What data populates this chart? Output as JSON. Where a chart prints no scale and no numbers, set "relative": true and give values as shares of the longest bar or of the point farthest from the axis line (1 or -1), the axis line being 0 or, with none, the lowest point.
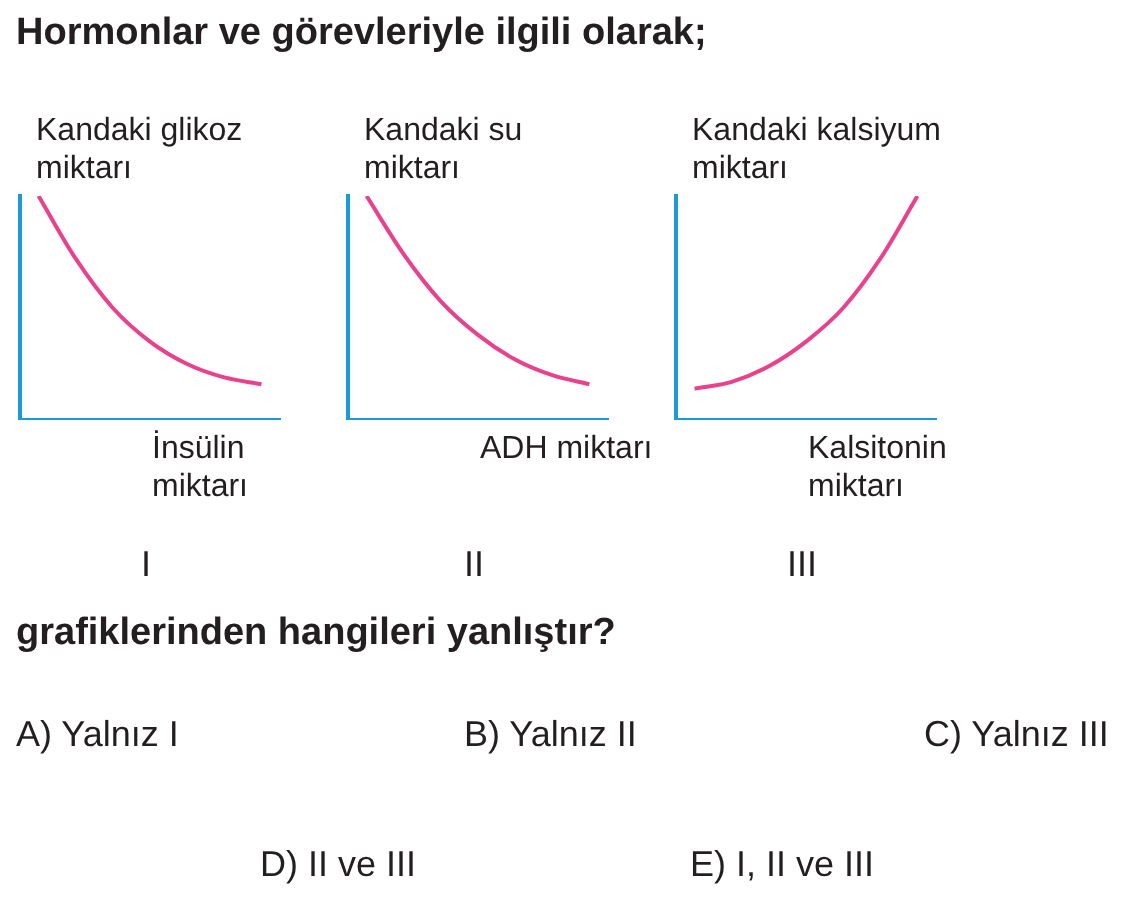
{
  "chart_data": [
    {
      "type": "other",
      "title": "Hormonlar ve görevleriyle ilgili olarak;"
    },
    {
      "type": "line",
      "relative": true,
      "ylabel": "Kandaki glikoz miktarı",
      "xlabel": "İnsülin miktarı",
      "annotations": [
        "I"
      ],
      "categories": [
        null,
        null,
        null,
        null,
        null,
        null,
        null
      ],
      "series": [
        {
          "color": "#e8428c",
          "values": [
            1,
            0.72,
            0.5,
            0.35,
            0.25,
            0.19,
            0.16
          ]
        }
      ],
      "marker": "none",
      "legend": false,
      "grid": false
    },
    {
      "type": "line",
      "relative": true,
      "ylabel": "Kandaki su miktarı",
      "xlabel": "ADH miktarı",
      "annotations": [
        "II"
      ],
      "categories": [
        null,
        null,
        null,
        null,
        null,
        null,
        null
      ],
      "series": [
        {
          "color": "#e8428c",
          "values": [
            1,
            0.74,
            0.53,
            0.38,
            0.27,
            0.2,
            0.16
          ]
        }
      ],
      "marker": "none",
      "legend": false,
      "grid": false
    },
    {
      "type": "line",
      "relative": true,
      "ylabel": "Kandaki kalsiyum miktarı",
      "xlabel": "Kalsitonin miktarı",
      "annotations": [
        "III"
      ],
      "categories": [
        null,
        null,
        null,
        null,
        null,
        null,
        null
      ],
      "series": [
        {
          "color": "#e8428c",
          "values": [
            0.14,
            0.17,
            0.24,
            0.35,
            0.5,
            0.72,
            1
          ]
        }
      ],
      "marker": "none",
      "legend": false,
      "grid": false
    },
    {
      "type": "other",
      "title": "grafiklerinden hangileri yanlıştır?",
      "annotations": [
        "A) Yalnız I",
        "B) Yalnız II",
        "C) Yalnız III",
        "D) II ve III",
        "E) I, II ve III"
      ]
    }
  ]
}
